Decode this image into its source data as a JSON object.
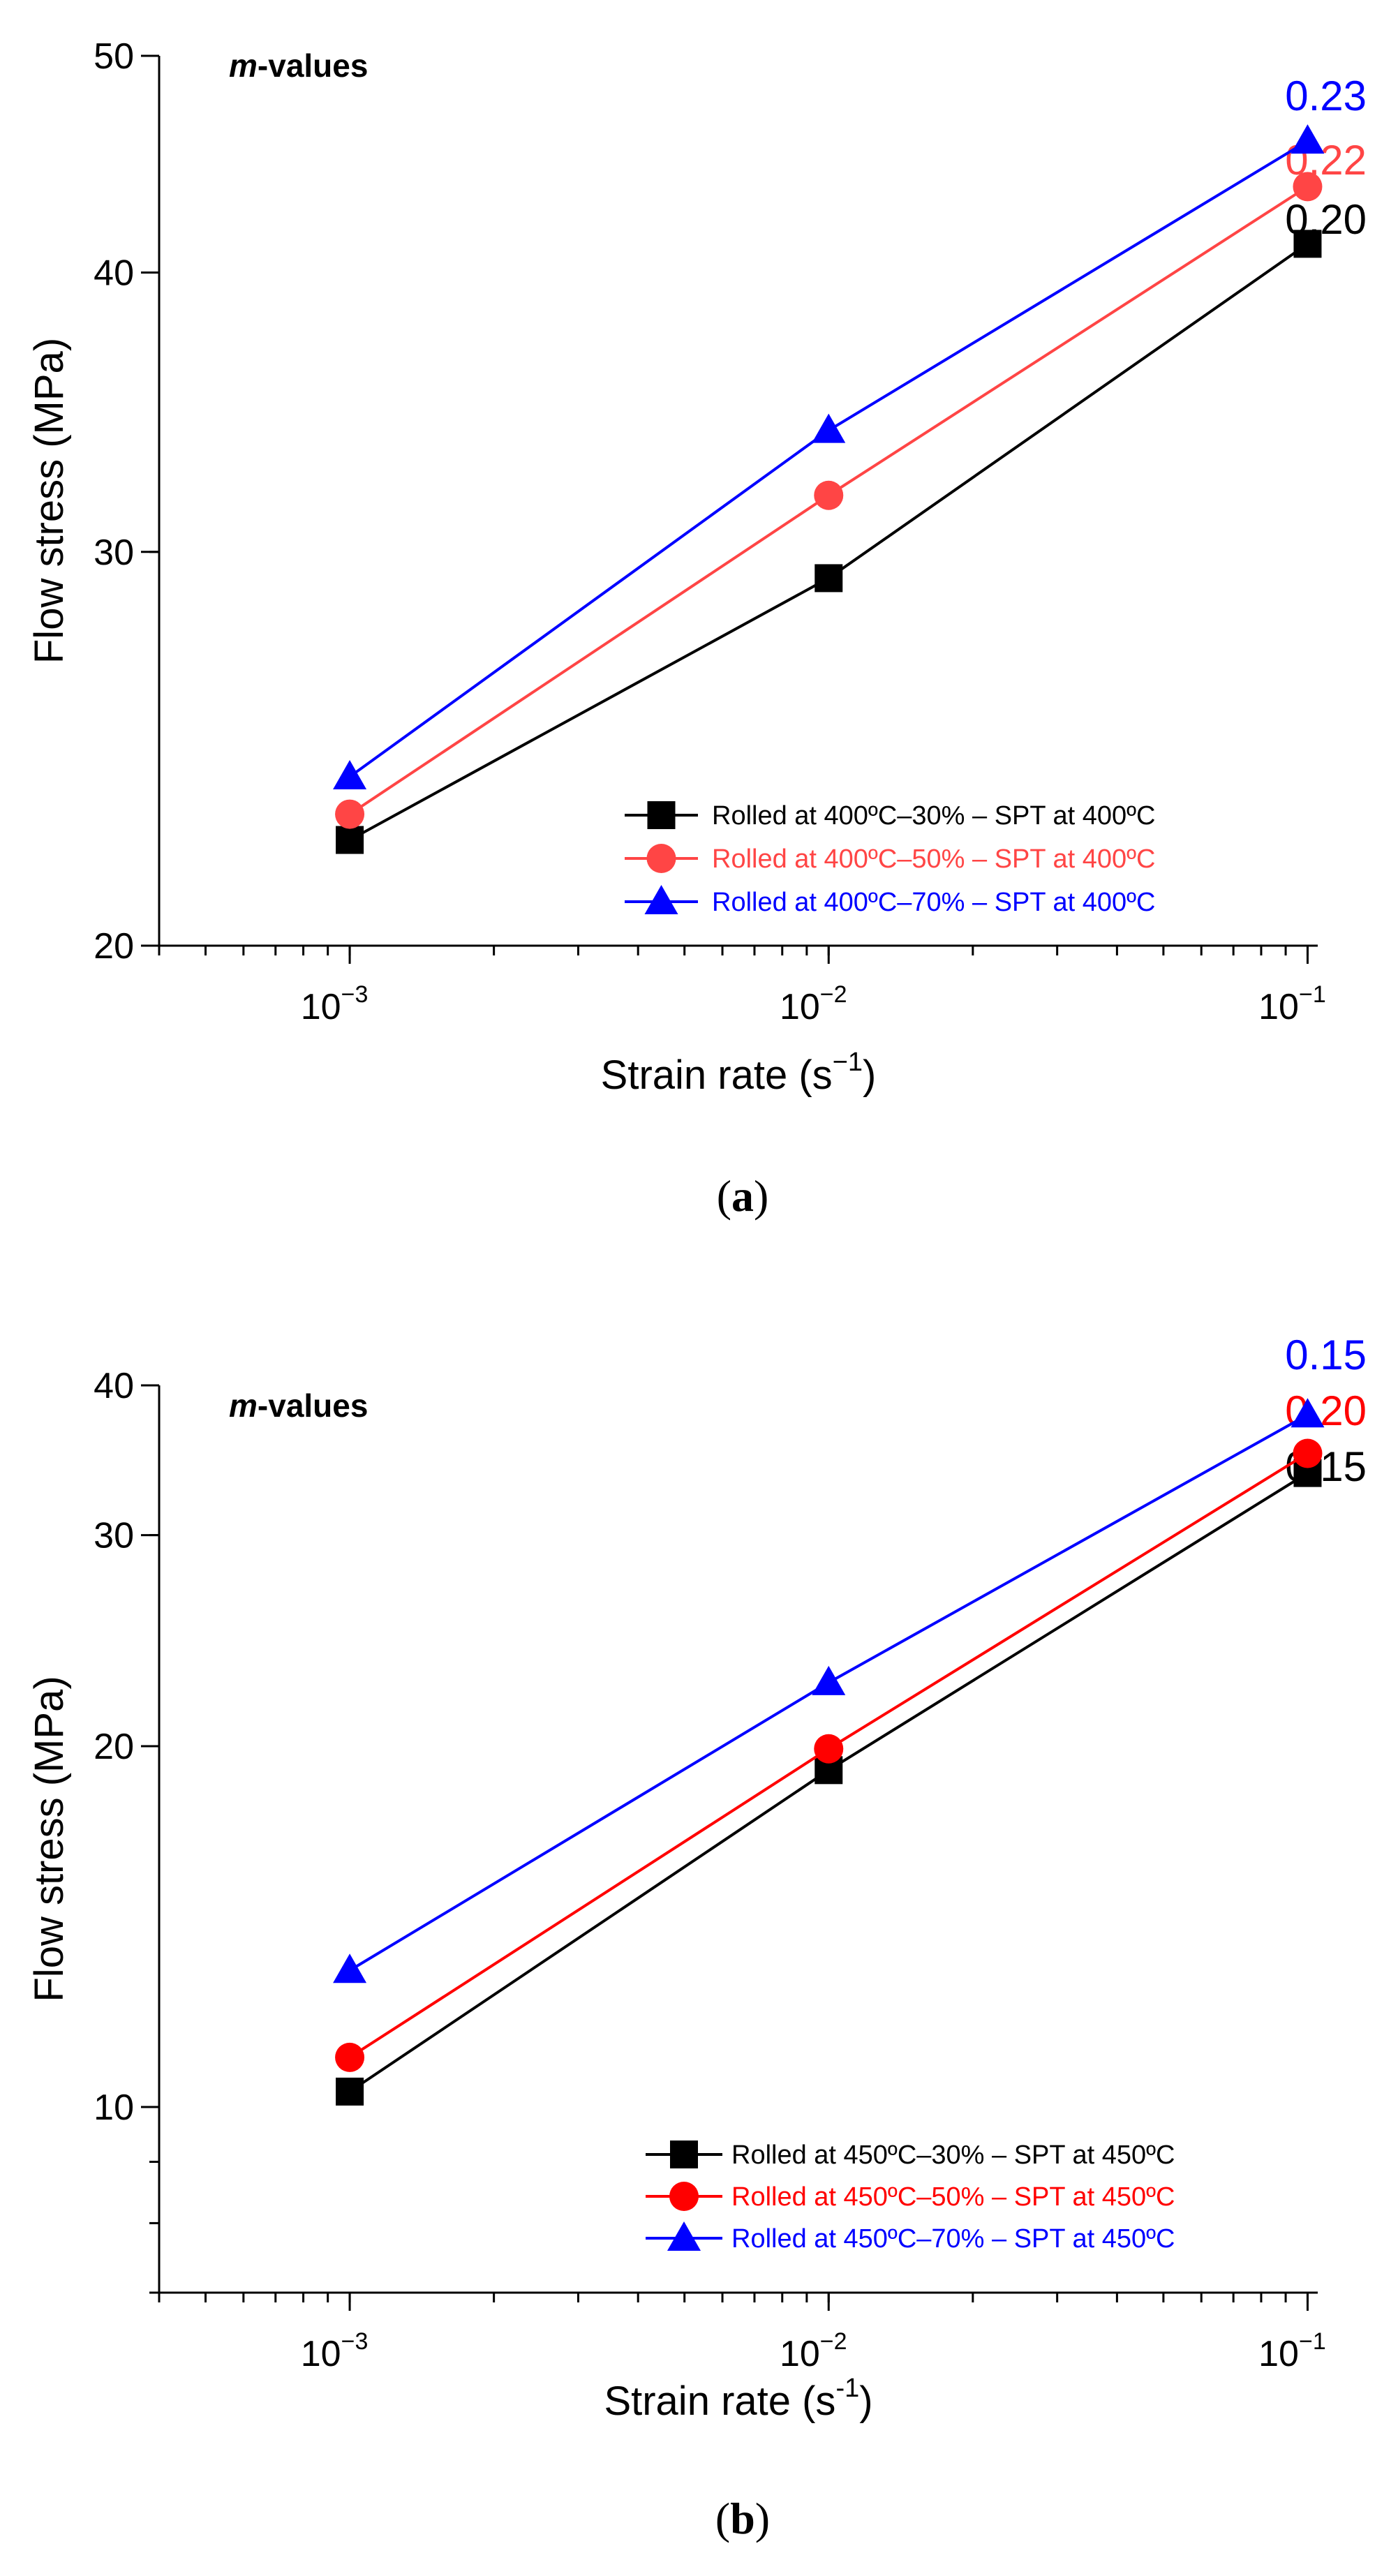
{
  "chart_data": [
    {
      "type": "line",
      "panel_label": "a",
      "annotation": "values",
      "annotation_prefix": "m",
      "xlabel": "Strain rate (s",
      "xlabel_sup": "−1",
      "xlabel_close": ")",
      "ylabel": "Flow stress (MPa)",
      "x_scale": "log",
      "y_scale": "log",
      "xlim": [
        0.0004,
        0.105
      ],
      "ylim": [
        20,
        50
      ],
      "x_ticks": [
        {
          "base": "10",
          "exp": "−3",
          "value": 0.001
        },
        {
          "base": "10",
          "exp": "−2",
          "value": 0.01
        },
        {
          "base": "10",
          "exp": "−1",
          "value": 0.1
        }
      ],
      "y_ticks": [
        {
          "label": "20",
          "value": 20
        },
        {
          "label": "30",
          "value": 30
        },
        {
          "label": "40",
          "value": 40
        },
        {
          "label": "50",
          "value": 50
        }
      ],
      "legend_position": "bottom-right",
      "x": [
        0.001,
        0.01,
        0.1
      ],
      "series": [
        {
          "name": "Rolled at 400ºC–30% – SPT at 400ºC",
          "color": "#000000",
          "marker": "square",
          "values": [
            22.3,
            29.2,
            41.2
          ],
          "m_value": "0.20"
        },
        {
          "name": "Rolled at 400ºC–50% – SPT at 400ºC",
          "color": "#ff4545",
          "marker": "circle",
          "values": [
            22.9,
            31.8,
            43.7
          ],
          "m_value": "0.22"
        },
        {
          "name": "Rolled at 400ºC–70% – SPT at 400ºC",
          "color": "#0000ff",
          "marker": "triangle",
          "values": [
            23.8,
            34.0,
            45.8
          ],
          "m_value": "0.23"
        }
      ]
    },
    {
      "type": "line",
      "panel_label": "b",
      "annotation": "values",
      "annotation_prefix": "m",
      "xlabel": "Strain rate (s",
      "xlabel_sup": "-1",
      "xlabel_close": ")",
      "ylabel": "Flow stress (MPa)",
      "x_scale": "log",
      "y_scale": "log",
      "xlim": [
        0.0004,
        0.105
      ],
      "ylim": [
        7,
        40
      ],
      "x_ticks": [
        {
          "base": "10",
          "exp": "−3",
          "value": 0.001
        },
        {
          "base": "10",
          "exp": "−2",
          "value": 0.01
        },
        {
          "base": "10",
          "exp": "−1",
          "value": 0.1
        }
      ],
      "y_ticks": [
        {
          "label": "10",
          "value": 10
        },
        {
          "label": "20",
          "value": 20
        },
        {
          "label": "30",
          "value": 30
        },
        {
          "label": "40",
          "value": 40
        }
      ],
      "legend_position": "bottom-right",
      "x": [
        0.001,
        0.01,
        0.1
      ],
      "series": [
        {
          "name": "Rolled at 450ºC–30% – SPT at 450ºC",
          "color": "#000000",
          "marker": "square",
          "values": [
            10.3,
            19.1,
            33.8
          ],
          "m_value": "0.15"
        },
        {
          "name": "Rolled at 450ºC–50% – SPT at 450ºC",
          "color": "#ff0000",
          "marker": "circle",
          "values": [
            11.0,
            19.9,
            35.1
          ],
          "m_value": "0.20"
        },
        {
          "name": "Rolled at 450ºC–70% – SPT at 450ºC",
          "color": "#0000ff",
          "marker": "triangle",
          "values": [
            13.0,
            22.6,
            37.8
          ],
          "m_value": "0.15"
        }
      ]
    }
  ]
}
